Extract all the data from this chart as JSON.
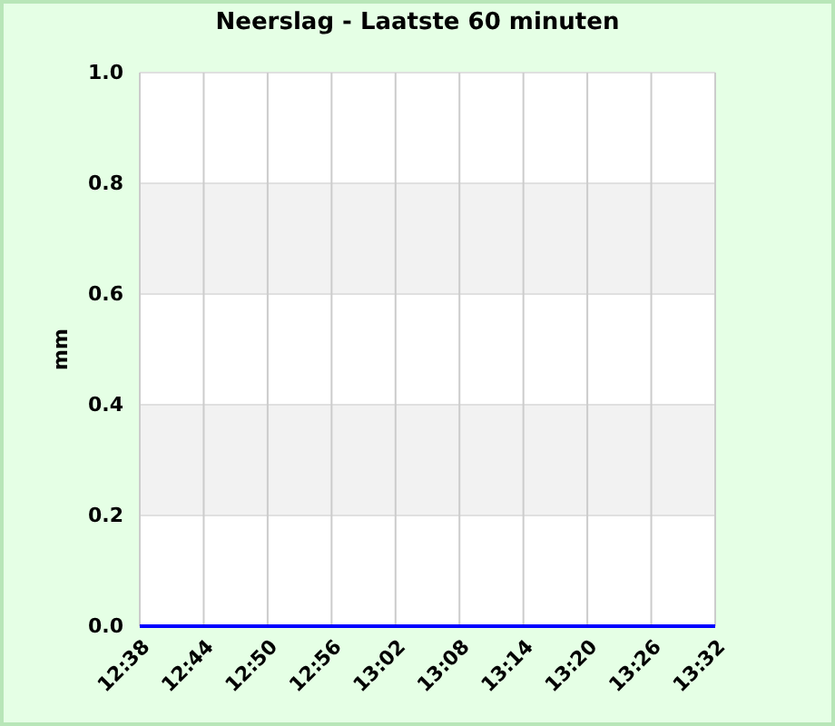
{
  "chart_data": {
    "type": "line",
    "title": "Neerslag - Laatste 60 minuten",
    "ylabel": "mm",
    "x": [
      12.6333,
      13.5333
    ],
    "series": [
      {
        "color": "#0000ff",
        "values": [
          0,
          0
        ]
      }
    ],
    "xlim": [
      12.6333,
      13.5333
    ],
    "xticks": [
      {
        "value": 12.6333,
        "label": "12:38"
      },
      {
        "value": 12.7333,
        "label": "12:44"
      },
      {
        "value": 12.8333,
        "label": "12:50"
      },
      {
        "value": 12.9333,
        "label": "12:56"
      },
      {
        "value": 13.0333,
        "label": "13:02"
      },
      {
        "value": 13.1333,
        "label": "13:08"
      },
      {
        "value": 13.2333,
        "label": "13:14"
      },
      {
        "value": 13.3333,
        "label": "13:20"
      },
      {
        "value": 13.4333,
        "label": "13:26"
      },
      {
        "value": 13.5333,
        "label": "13:32"
      }
    ],
    "ylim": [
      0,
      1
    ],
    "yticks": [
      {
        "value": 0,
        "label": "0.0"
      },
      0.2,
      0.4,
      0.6,
      0.8,
      {
        "value": 1,
        "label": "1.0"
      }
    ],
    "bands": [
      {
        "axis": "y",
        "from": 0.2,
        "to": 0.4,
        "color": "#f2f2f2"
      },
      {
        "axis": "y",
        "from": 0.6,
        "to": 0.8,
        "color": "#f2f2f2"
      }
    ],
    "grid": true
  }
}
